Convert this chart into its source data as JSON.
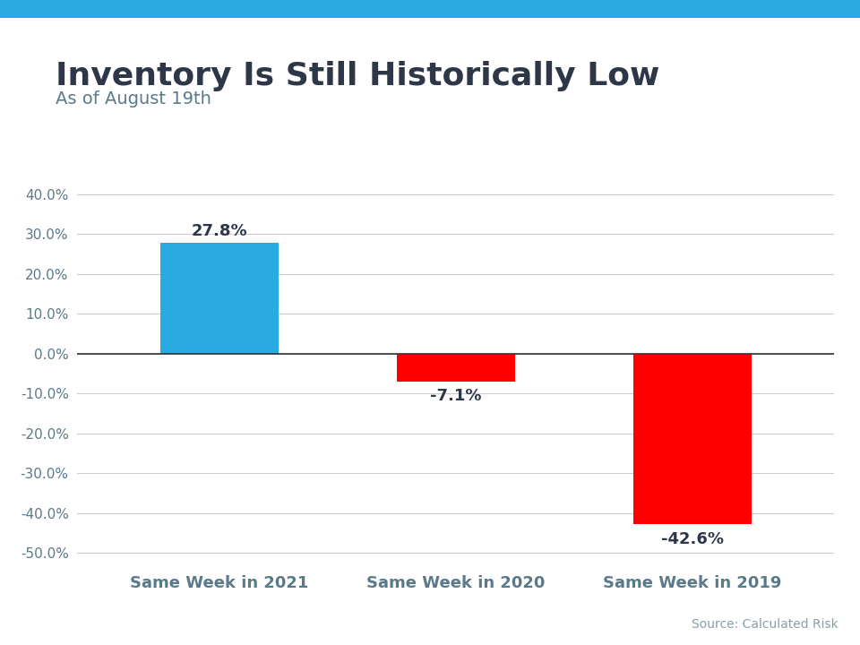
{
  "title": "Inventory Is Still Historically Low",
  "subtitle": "As of August 19th",
  "categories": [
    "Same Week in 2021",
    "Same Week in 2020",
    "Same Week in 2019"
  ],
  "values": [
    27.8,
    -7.1,
    -42.6
  ],
  "bar_colors": [
    "#29ABE2",
    "#FF0000",
    "#FF0000"
  ],
  "ylim": [
    -52,
    45
  ],
  "yticks": [
    -50.0,
    -40.0,
    -30.0,
    -20.0,
    -10.0,
    0.0,
    10.0,
    20.0,
    30.0,
    40.0
  ],
  "title_color": "#2d3748",
  "subtitle_color": "#5a7a8a",
  "tick_color": "#5a7a8a",
  "grid_color": "#cccccc",
  "label_color": "#2d3748",
  "source_text": "Source: Calculated Risk",
  "source_color": "#8aa0aa",
  "header_bar_color": "#29ABE2",
  "background_color": "#ffffff"
}
